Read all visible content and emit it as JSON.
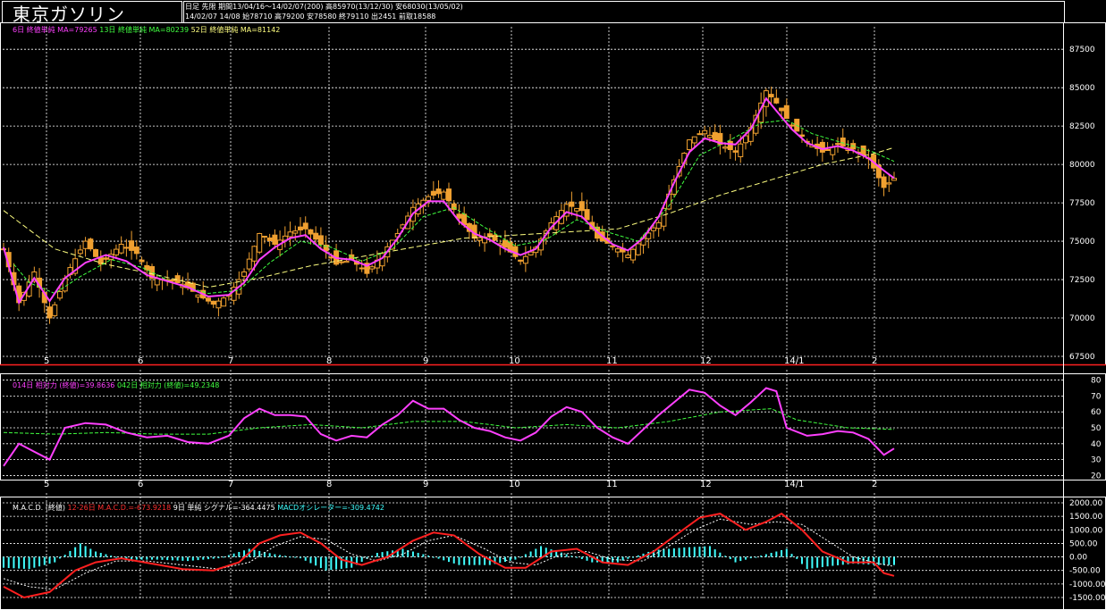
{
  "header": {
    "title": "東京ガソリン",
    "line1": "日足 先限 期間13/04/16〜14/02/07(200) 高85970(13/12/30) 安68030(13/05/02)",
    "line2": "14/02/07 14/08 始78710 高79200 安78580 終79110 出2451 前取18588"
  },
  "legends": {
    "price": [
      {
        "text": "6日 終値単純 MA=79265",
        "color": "#ff40ff"
      },
      {
        "text": "13日 終値単純 MA=80239",
        "color": "#40ff40"
      },
      {
        "text": "52日 終値単純 MA=81142",
        "color": "#ffff80"
      }
    ],
    "rsi": [
      {
        "text": "014日 相対力 (終値)=39.8636",
        "color": "#ff40ff"
      },
      {
        "text": "042日 相対力 (終値)=49.2348",
        "color": "#40ff40"
      }
    ],
    "macd": [
      {
        "text": "M.A.C.D. (終値)",
        "color": "#ffffff"
      },
      {
        "text": "12-26日 M.A.C.D.=-673.9218",
        "color": "#ff3030"
      },
      {
        "text": "9日 単純 シグナル=-364.4475",
        "color": "#ffffff"
      },
      {
        "text": "MACDオシレーター=-309.4742",
        "color": "#40ffff"
      }
    ]
  },
  "x_labels": [
    "5",
    "6",
    "7",
    "8",
    "9",
    "10",
    "11",
    "12",
    "14/1",
    "2"
  ],
  "chart_data": [
    {
      "type": "candlestick",
      "name": "price",
      "y_ticks": [
        67500,
        70000,
        72500,
        75000,
        77500,
        80000,
        82500,
        85000,
        87500
      ],
      "ylim": [
        67500,
        88500
      ],
      "grid": true,
      "close_path": [
        [
          0,
          74500
        ],
        [
          6,
          71000
        ],
        [
          12,
          73000
        ],
        [
          18,
          70000
        ],
        [
          25,
          73000
        ],
        [
          32,
          75000
        ],
        [
          38,
          73500
        ],
        [
          46,
          74800
        ],
        [
          52,
          74200
        ],
        [
          58,
          72600
        ],
        [
          64,
          72500
        ],
        [
          70,
          72200
        ],
        [
          76,
          71500
        ],
        [
          82,
          70900
        ],
        [
          88,
          71500
        ],
        [
          94,
          73000
        ],
        [
          100,
          75500
        ],
        [
          106,
          74800
        ],
        [
          112,
          75600
        ],
        [
          118,
          75800
        ],
        [
          124,
          74800
        ],
        [
          130,
          73500
        ],
        [
          136,
          73800
        ],
        [
          142,
          72900
        ],
        [
          148,
          74200
        ],
        [
          154,
          75500
        ],
        [
          160,
          77200
        ],
        [
          166,
          77900
        ],
        [
          172,
          78200
        ],
        [
          178,
          76500
        ],
        [
          184,
          75200
        ],
        [
          190,
          75300
        ],
        [
          196,
          74600
        ],
        [
          202,
          73700
        ],
        [
          208,
          74600
        ],
        [
          214,
          76200
        ],
        [
          220,
          77400
        ],
        [
          226,
          77000
        ],
        [
          232,
          75200
        ],
        [
          238,
          74700
        ],
        [
          244,
          74100
        ],
        [
          250,
          75200
        ],
        [
          256,
          76200
        ],
        [
          262,
          79000
        ],
        [
          268,
          81600
        ],
        [
          274,
          82200
        ],
        [
          280,
          81300
        ],
        [
          286,
          80800
        ],
        [
          292,
          82400
        ],
        [
          298,
          84800
        ],
        [
          302,
          84000
        ],
        [
          308,
          82500
        ],
        [
          314,
          81500
        ],
        [
          320,
          80800
        ],
        [
          326,
          81300
        ],
        [
          332,
          81000
        ],
        [
          338,
          80400
        ],
        [
          344,
          78500
        ],
        [
          348,
          79100
        ]
      ],
      "ma6_path": [
        [
          0,
          74600
        ],
        [
          6,
          71000
        ],
        [
          12,
          72600
        ],
        [
          18,
          71100
        ],
        [
          24,
          72600
        ],
        [
          32,
          73600
        ],
        [
          40,
          74100
        ],
        [
          48,
          73700
        ],
        [
          56,
          72800
        ],
        [
          64,
          72400
        ],
        [
          72,
          72000
        ],
        [
          80,
          71400
        ],
        [
          88,
          71500
        ],
        [
          94,
          72300
        ],
        [
          100,
          73800
        ],
        [
          106,
          74600
        ],
        [
          112,
          75200
        ],
        [
          118,
          75400
        ],
        [
          124,
          74500
        ],
        [
          130,
          73900
        ],
        [
          136,
          73800
        ],
        [
          142,
          73400
        ],
        [
          148,
          73900
        ],
        [
          154,
          75200
        ],
        [
          160,
          76800
        ],
        [
          166,
          77600
        ],
        [
          172,
          77600
        ],
        [
          178,
          76300
        ],
        [
          184,
          75500
        ],
        [
          190,
          75100
        ],
        [
          196,
          74500
        ],
        [
          202,
          74100
        ],
        [
          208,
          74500
        ],
        [
          214,
          75900
        ],
        [
          220,
          76900
        ],
        [
          226,
          76600
        ],
        [
          232,
          75600
        ],
        [
          238,
          74800
        ],
        [
          244,
          74400
        ],
        [
          250,
          75200
        ],
        [
          256,
          76600
        ],
        [
          262,
          78800
        ],
        [
          268,
          80800
        ],
        [
          274,
          81700
        ],
        [
          280,
          81400
        ],
        [
          286,
          81300
        ],
        [
          292,
          82300
        ],
        [
          298,
          84300
        ],
        [
          302,
          83500
        ],
        [
          308,
          82300
        ],
        [
          314,
          81400
        ],
        [
          320,
          81000
        ],
        [
          326,
          81200
        ],
        [
          332,
          80900
        ],
        [
          338,
          80400
        ],
        [
          344,
          79600
        ],
        [
          348,
          79100
        ]
      ],
      "ma13_path": [
        [
          4,
          73500
        ],
        [
          10,
          72300
        ],
        [
          20,
          71600
        ],
        [
          30,
          72700
        ],
        [
          42,
          73800
        ],
        [
          54,
          73300
        ],
        [
          66,
          72300
        ],
        [
          80,
          71600
        ],
        [
          92,
          71800
        ],
        [
          104,
          73600
        ],
        [
          116,
          75000
        ],
        [
          128,
          74600
        ],
        [
          140,
          73700
        ],
        [
          152,
          74500
        ],
        [
          164,
          76600
        ],
        [
          176,
          77200
        ],
        [
          188,
          75900
        ],
        [
          200,
          74700
        ],
        [
          212,
          75100
        ],
        [
          224,
          76400
        ],
        [
          236,
          75600
        ],
        [
          248,
          75000
        ],
        [
          260,
          77300
        ],
        [
          272,
          80600
        ],
        [
          284,
          81600
        ],
        [
          296,
          82700
        ],
        [
          306,
          82900
        ],
        [
          316,
          82000
        ],
        [
          328,
          81400
        ],
        [
          340,
          80800
        ],
        [
          348,
          80200
        ]
      ],
      "ma52_path": [
        [
          0,
          77000
        ],
        [
          20,
          74500
        ],
        [
          40,
          73500
        ],
        [
          60,
          72800
        ],
        [
          80,
          72000
        ],
        [
          100,
          72600
        ],
        [
          120,
          73400
        ],
        [
          140,
          74000
        ],
        [
          160,
          74600
        ],
        [
          180,
          75200
        ],
        [
          200,
          75400
        ],
        [
          220,
          75600
        ],
        [
          240,
          75800
        ],
        [
          260,
          76800
        ],
        [
          280,
          78000
        ],
        [
          300,
          79000
        ],
        [
          320,
          80000
        ],
        [
          340,
          80700
        ],
        [
          348,
          81100
        ]
      ]
    },
    {
      "type": "line",
      "name": "rsi",
      "y_ticks": [
        20,
        30,
        40,
        50,
        60,
        70,
        80
      ],
      "ylim": [
        18,
        82
      ],
      "rsi14_path": [
        [
          0,
          26
        ],
        [
          6,
          40
        ],
        [
          12,
          35
        ],
        [
          18,
          30
        ],
        [
          24,
          50
        ],
        [
          32,
          53
        ],
        [
          40,
          52
        ],
        [
          48,
          47
        ],
        [
          56,
          44
        ],
        [
          64,
          45
        ],
        [
          72,
          41
        ],
        [
          80,
          40
        ],
        [
          88,
          45
        ],
        [
          94,
          56
        ],
        [
          100,
          62
        ],
        [
          106,
          58
        ],
        [
          112,
          58
        ],
        [
          118,
          57
        ],
        [
          124,
          46
        ],
        [
          130,
          42
        ],
        [
          136,
          45
        ],
        [
          142,
          44
        ],
        [
          148,
          52
        ],
        [
          154,
          58
        ],
        [
          160,
          67
        ],
        [
          166,
          62
        ],
        [
          172,
          62
        ],
        [
          178,
          55
        ],
        [
          184,
          50
        ],
        [
          190,
          48
        ],
        [
          196,
          44
        ],
        [
          202,
          42
        ],
        [
          208,
          47
        ],
        [
          214,
          57
        ],
        [
          220,
          63
        ],
        [
          226,
          60
        ],
        [
          232,
          50
        ],
        [
          238,
          44
        ],
        [
          244,
          40
        ],
        [
          250,
          49
        ],
        [
          256,
          58
        ],
        [
          262,
          66
        ],
        [
          268,
          74
        ],
        [
          274,
          72
        ],
        [
          280,
          64
        ],
        [
          286,
          58
        ],
        [
          292,
          66
        ],
        [
          298,
          75
        ],
        [
          302,
          73
        ],
        [
          306,
          50
        ],
        [
          314,
          45
        ],
        [
          320,
          46
        ],
        [
          326,
          48
        ],
        [
          332,
          47
        ],
        [
          338,
          43
        ],
        [
          344,
          33
        ],
        [
          348,
          37
        ]
      ],
      "rsi42_path": [
        [
          0,
          47
        ],
        [
          20,
          46
        ],
        [
          40,
          47
        ],
        [
          60,
          46
        ],
        [
          80,
          46
        ],
        [
          100,
          50
        ],
        [
          120,
          52
        ],
        [
          140,
          50
        ],
        [
          160,
          54
        ],
        [
          180,
          54
        ],
        [
          200,
          50
        ],
        [
          220,
          52
        ],
        [
          240,
          50
        ],
        [
          260,
          54
        ],
        [
          280,
          60
        ],
        [
          300,
          62
        ],
        [
          310,
          55
        ],
        [
          330,
          50
        ],
        [
          348,
          49
        ]
      ]
    },
    {
      "type": "bar+line",
      "name": "macd",
      "y_ticks": [
        -1500,
        -1000,
        -500,
        0,
        500,
        1000,
        1500,
        2000
      ],
      "ylim": [
        -1600,
        2100
      ],
      "macd_path": [
        [
          0,
          -1100
        ],
        [
          8,
          -1500
        ],
        [
          18,
          -1300
        ],
        [
          28,
          -500
        ],
        [
          36,
          -200
        ],
        [
          46,
          -50
        ],
        [
          58,
          -250
        ],
        [
          70,
          -450
        ],
        [
          82,
          -500
        ],
        [
          92,
          -200
        ],
        [
          100,
          500
        ],
        [
          108,
          800
        ],
        [
          116,
          900
        ],
        [
          124,
          500
        ],
        [
          132,
          -100
        ],
        [
          140,
          -300
        ],
        [
          150,
          0
        ],
        [
          160,
          600
        ],
        [
          168,
          900
        ],
        [
          176,
          800
        ],
        [
          186,
          100
        ],
        [
          196,
          -400
        ],
        [
          204,
          -400
        ],
        [
          214,
          200
        ],
        [
          224,
          300
        ],
        [
          234,
          -200
        ],
        [
          244,
          -300
        ],
        [
          254,
          200
        ],
        [
          264,
          900
        ],
        [
          272,
          1450
        ],
        [
          280,
          1600
        ],
        [
          290,
          1000
        ],
        [
          298,
          1300
        ],
        [
          304,
          1600
        ],
        [
          312,
          1000
        ],
        [
          320,
          200
        ],
        [
          330,
          -200
        ],
        [
          340,
          -200
        ],
        [
          344,
          -600
        ],
        [
          348,
          -700
        ]
      ],
      "signal_path": [
        [
          0,
          -800
        ],
        [
          10,
          -1100
        ],
        [
          20,
          -1200
        ],
        [
          32,
          -600
        ],
        [
          44,
          -150
        ],
        [
          56,
          -150
        ],
        [
          70,
          -300
        ],
        [
          84,
          -450
        ],
        [
          96,
          -200
        ],
        [
          106,
          400
        ],
        [
          116,
          750
        ],
        [
          126,
          650
        ],
        [
          136,
          100
        ],
        [
          146,
          -150
        ],
        [
          156,
          100
        ],
        [
          166,
          600
        ],
        [
          176,
          800
        ],
        [
          188,
          300
        ],
        [
          198,
          -200
        ],
        [
          208,
          -300
        ],
        [
          218,
          100
        ],
        [
          228,
          200
        ],
        [
          238,
          -100
        ],
        [
          250,
          -150
        ],
        [
          260,
          400
        ],
        [
          270,
          1000
        ],
        [
          280,
          1400
        ],
        [
          292,
          1200
        ],
        [
          302,
          1300
        ],
        [
          312,
          1200
        ],
        [
          322,
          600
        ],
        [
          332,
          0
        ],
        [
          342,
          -250
        ],
        [
          348,
          -350
        ]
      ],
      "histogram_path": [
        [
          0,
          -400
        ],
        [
          10,
          -450
        ],
        [
          20,
          -200
        ],
        [
          30,
          500
        ],
        [
          36,
          200
        ],
        [
          48,
          -100
        ],
        [
          60,
          -100
        ],
        [
          72,
          -150
        ],
        [
          84,
          -50
        ],
        [
          96,
          300
        ],
        [
          106,
          100
        ],
        [
          116,
          -50
        ],
        [
          126,
          -500
        ],
        [
          136,
          -400
        ],
        [
          146,
          150
        ],
        [
          156,
          300
        ],
        [
          166,
          50
        ],
        [
          178,
          -300
        ],
        [
          190,
          -300
        ],
        [
          200,
          -100
        ],
        [
          210,
          400
        ],
        [
          220,
          100
        ],
        [
          230,
          -200
        ],
        [
          240,
          -200
        ],
        [
          254,
          250
        ],
        [
          266,
          350
        ],
        [
          276,
          400
        ],
        [
          286,
          -200
        ],
        [
          296,
          50
        ],
        [
          306,
          300
        ],
        [
          314,
          -450
        ],
        [
          322,
          -350
        ],
        [
          332,
          -250
        ],
        [
          342,
          -300
        ],
        [
          348,
          -300
        ]
      ]
    }
  ]
}
